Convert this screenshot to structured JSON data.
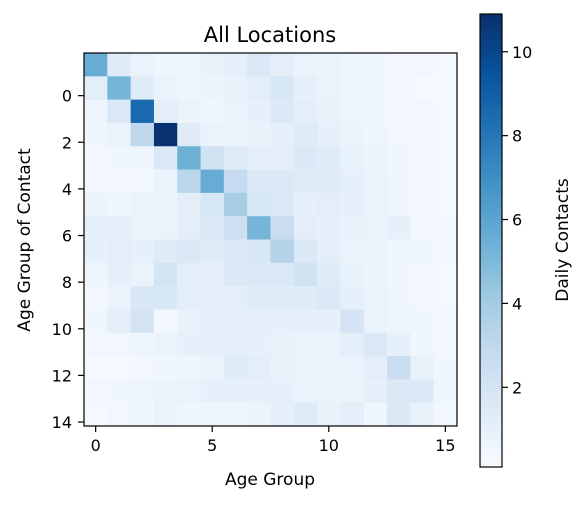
{
  "chart_data": {
    "type": "heatmap",
    "title": "All Locations",
    "xlabel": "Age Group",
    "ylabel": "Age Group of Contact",
    "x_ticks": [
      0,
      5,
      10,
      15
    ],
    "y_ticks": [
      0,
      2,
      4,
      6,
      8,
      10,
      12,
      14
    ],
    "colorbar": {
      "label": "Daily Contacts",
      "range": [
        0.1,
        10.9
      ],
      "ticks": [
        2,
        4,
        6,
        8,
        10
      ],
      "colormap": [
        "#f7fbff",
        "#deebf7",
        "#c6dbef",
        "#9ecae1",
        "#6baed6",
        "#4292c6",
        "#2171b5",
        "#08519c",
        "#08306b"
      ]
    },
    "matrix": [
      [
        5.6,
        1.4,
        0.8,
        0.6,
        0.6,
        0.9,
        1.1,
        1.6,
        1.2,
        0.8,
        0.7,
        0.6,
        0.5,
        0.4,
        0.4,
        0.3
      ],
      [
        1.2,
        5.2,
        1.4,
        0.8,
        0.6,
        0.7,
        0.9,
        1.2,
        1.8,
        1.0,
        0.8,
        0.5,
        0.5,
        0.4,
        0.3,
        0.3
      ],
      [
        0.6,
        1.6,
        8.6,
        1.2,
        0.8,
        0.6,
        0.8,
        1.0,
        1.6,
        1.2,
        0.9,
        0.6,
        0.5,
        0.4,
        0.4,
        0.3
      ],
      [
        0.5,
        0.8,
        3.0,
        10.8,
        1.4,
        0.8,
        0.8,
        0.9,
        1.0,
        1.4,
        1.0,
        0.7,
        0.6,
        0.4,
        0.4,
        0.3
      ],
      [
        0.4,
        0.5,
        0.6,
        1.6,
        5.4,
        2.2,
        1.4,
        1.2,
        1.2,
        1.6,
        1.4,
        0.9,
        0.7,
        0.5,
        0.4,
        0.3
      ],
      [
        0.4,
        0.4,
        0.4,
        0.8,
        3.2,
        5.6,
        2.8,
        1.6,
        1.6,
        1.4,
        1.4,
        1.0,
        0.8,
        0.6,
        0.4,
        0.3
      ],
      [
        0.7,
        0.6,
        0.8,
        0.7,
        1.2,
        1.8,
        3.8,
        1.8,
        1.6,
        1.0,
        1.2,
        1.0,
        0.8,
        0.6,
        0.4,
        0.3
      ],
      [
        1.0,
        1.0,
        0.8,
        0.8,
        1.2,
        1.6,
        2.4,
        5.2,
        2.6,
        1.2,
        1.0,
        0.9,
        0.8,
        1.0,
        0.4,
        0.4
      ],
      [
        1.0,
        1.2,
        1.0,
        1.4,
        1.6,
        1.4,
        1.6,
        1.8,
        3.4,
        1.6,
        1.2,
        0.8,
        0.7,
        0.6,
        0.5,
        0.4
      ],
      [
        0.6,
        1.0,
        0.8,
        2.0,
        1.2,
        1.0,
        1.6,
        1.6,
        1.6,
        2.2,
        1.4,
        0.9,
        0.7,
        0.5,
        0.4,
        0.3
      ],
      [
        0.4,
        0.8,
        1.8,
        1.8,
        1.2,
        1.2,
        1.2,
        1.4,
        1.4,
        1.4,
        1.6,
        1.0,
        0.8,
        0.6,
        0.4,
        0.3
      ],
      [
        0.5,
        1.2,
        2.0,
        0.4,
        0.9,
        1.0,
        1.0,
        1.0,
        1.0,
        1.0,
        1.0,
        2.0,
        0.8,
        0.6,
        0.5,
        0.4
      ],
      [
        0.4,
        0.4,
        0.6,
        0.8,
        1.0,
        1.0,
        1.2,
        1.0,
        0.9,
        0.8,
        0.8,
        1.2,
        1.6,
        1.0,
        0.5,
        0.4
      ],
      [
        0.3,
        0.3,
        0.4,
        0.5,
        0.6,
        0.8,
        1.4,
        1.2,
        0.9,
        0.8,
        0.8,
        0.8,
        1.2,
        2.6,
        0.9,
        0.5
      ],
      [
        0.4,
        0.5,
        0.6,
        0.7,
        0.8,
        1.0,
        1.0,
        1.0,
        1.0,
        0.8,
        0.8,
        0.7,
        1.0,
        1.6,
        1.6,
        0.6
      ],
      [
        0.3,
        0.4,
        0.5,
        0.8,
        0.6,
        0.6,
        0.6,
        0.7,
        1.0,
        1.4,
        0.9,
        1.2,
        0.5,
        1.6,
        0.9,
        0.4
      ]
    ]
  }
}
